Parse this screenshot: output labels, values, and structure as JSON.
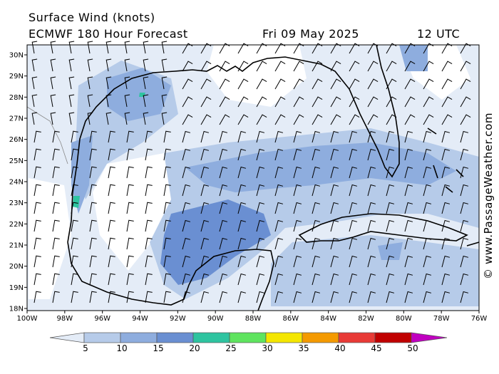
{
  "header": {
    "title": "Surface Wind (knots)",
    "model": "ECMWF 180 Hour Forecast",
    "date": "Fri 09 May 2025",
    "time": "12 UTC"
  },
  "axes": {
    "lat_labels": [
      "30N",
      "29N",
      "28N",
      "27N",
      "26N",
      "25N",
      "24N",
      "23N",
      "22N",
      "21N",
      "20N",
      "19N",
      "18N"
    ],
    "lon_labels": [
      "100W",
      "98W",
      "96W",
      "94W",
      "92W",
      "90W",
      "88W",
      "86W",
      "84W",
      "82W",
      "80W",
      "78W",
      "76W"
    ]
  },
  "map": {
    "region": "Gulf of Mexico",
    "lat_range": [
      18,
      30.5
    ],
    "lon_range": [
      -100,
      -76
    ]
  },
  "colorbar": {
    "labels": [
      "5",
      "10",
      "15",
      "20",
      "25",
      "30",
      "35",
      "40",
      "45",
      "50"
    ],
    "colors": [
      "#e4ecf7",
      "#b6cbe9",
      "#8eadde",
      "#6a8fd2",
      "#2ec4a0",
      "#5fe45f",
      "#f4e600",
      "#f49a00",
      "#e83a36",
      "#c00000",
      "#c000c0"
    ]
  },
  "credit": "© www.PassageWeather.com"
}
